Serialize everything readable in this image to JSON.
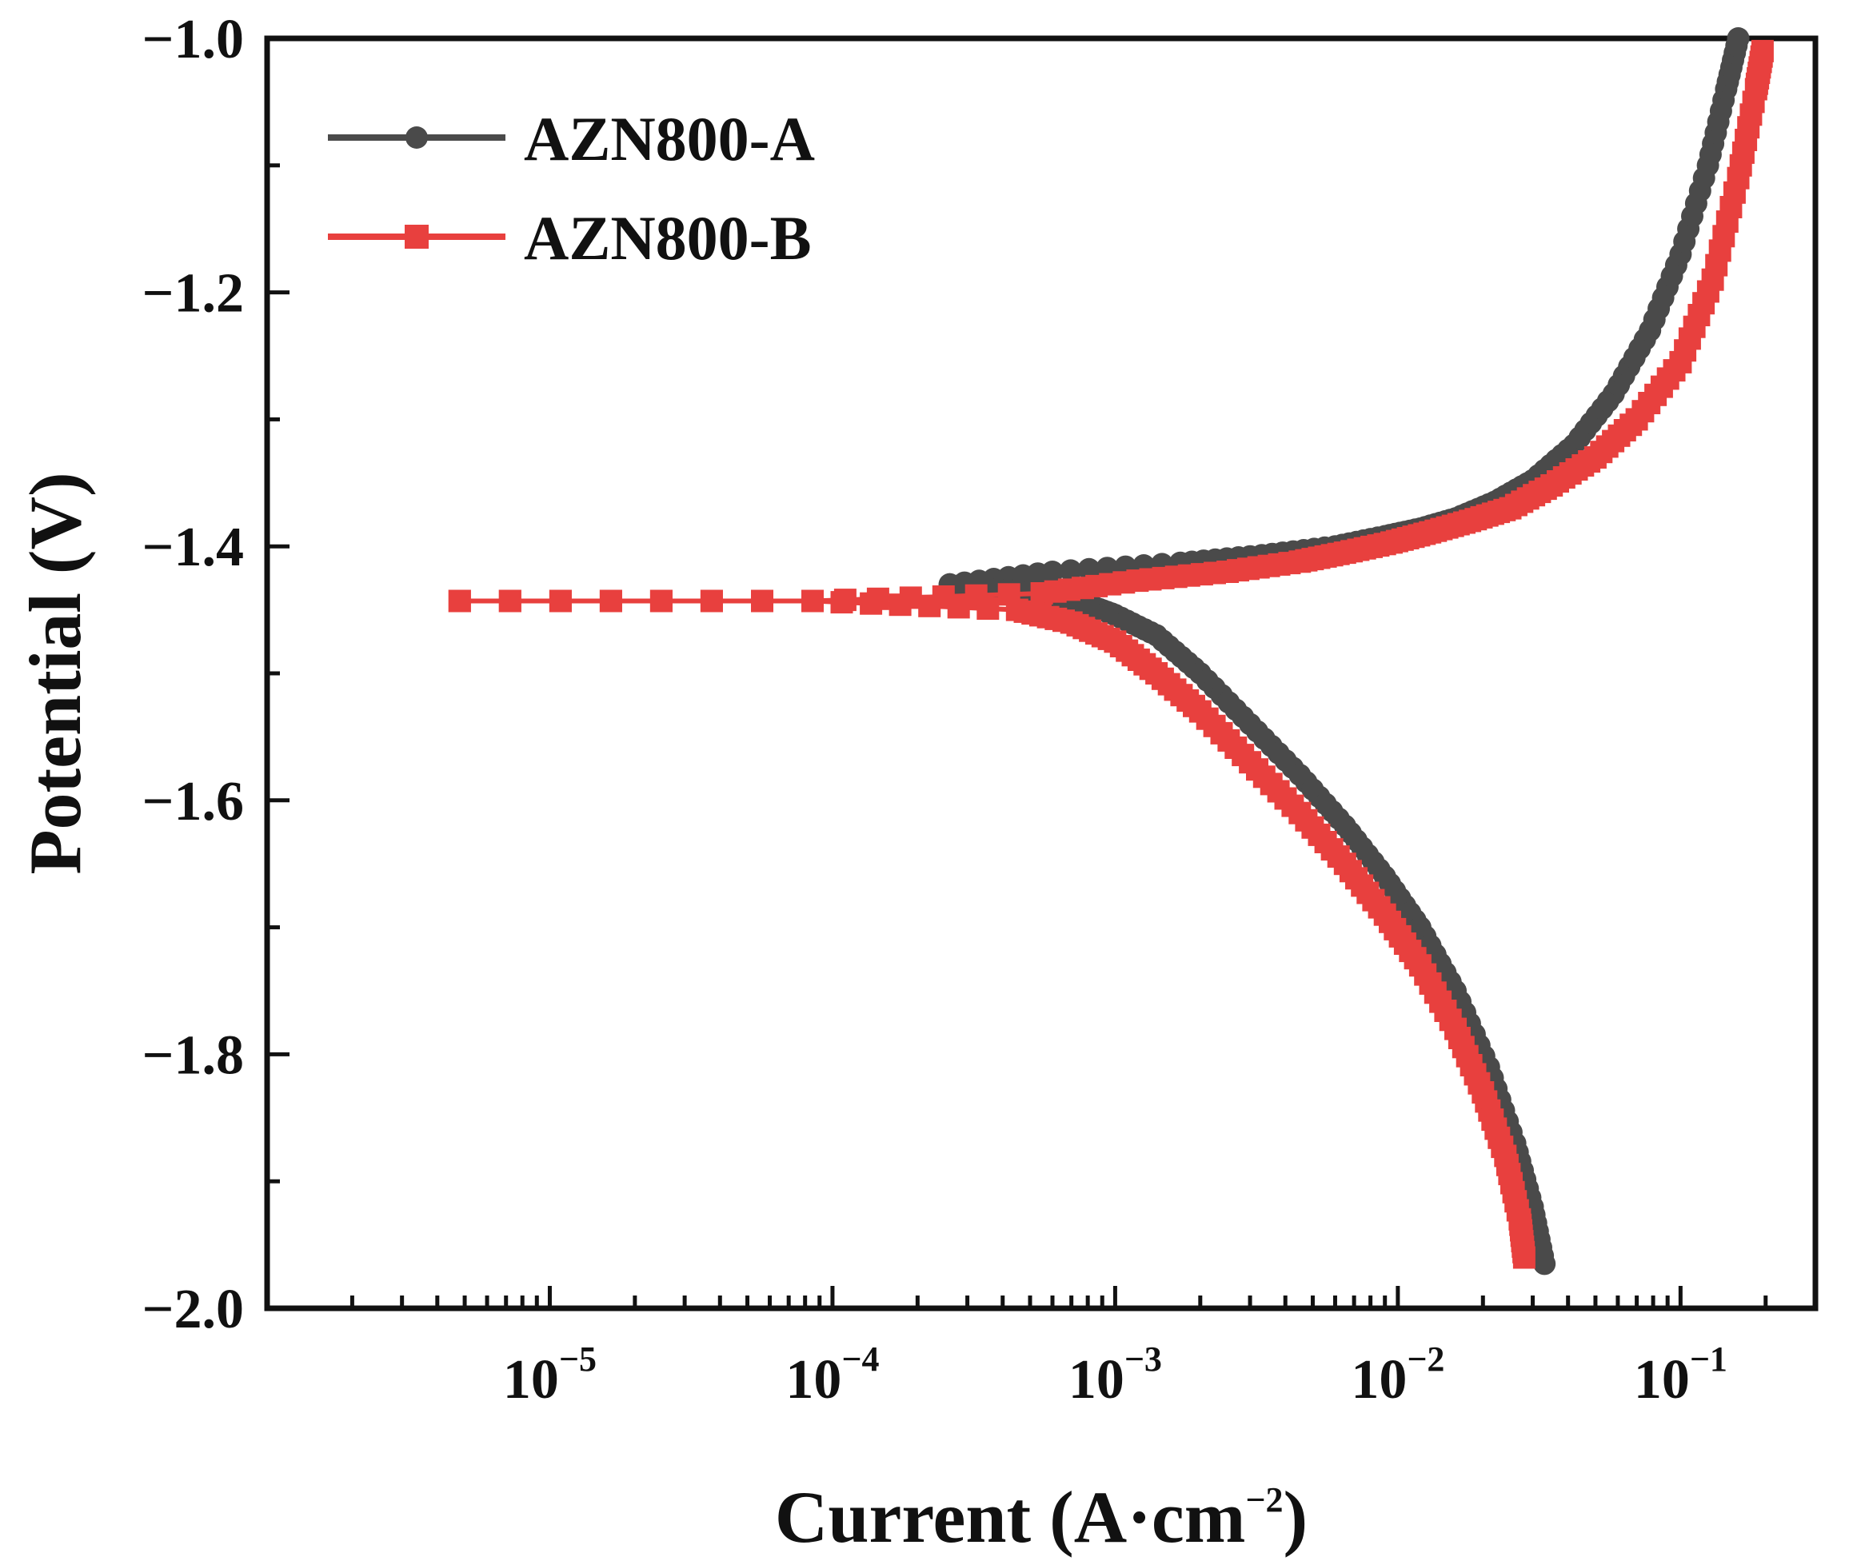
{
  "chart_data": {
    "type": "scatter",
    "title": "",
    "xlabel": "Current (A·cm⁻²)",
    "xlabel_base": "Current (A·cm",
    "xlabel_sup": "−2",
    "xlabel_end": ")",
    "ylabel": "Potential (V)",
    "xscale": "log",
    "xlim": [
      1e-06,
      0.3
    ],
    "ylim": [
      -2.0,
      -1.0
    ],
    "xticks": [
      {
        "base": "10",
        "exp": "−5"
      },
      {
        "base": "10",
        "exp": "−4"
      },
      {
        "base": "10",
        "exp": "−3"
      },
      {
        "base": "10",
        "exp": "−2"
      },
      {
        "base": "10",
        "exp": "−1"
      }
    ],
    "xtick_values": [
      1e-05,
      0.0001,
      0.001,
      0.01,
      0.1
    ],
    "yticks": [
      "−1.0",
      "−1.2",
      "−1.4",
      "−1.6",
      "−1.8",
      "−2.0"
    ],
    "ytick_values": [
      -1.0,
      -1.2,
      -1.4,
      -1.6,
      -1.8,
      -2.0
    ],
    "grid": false,
    "legend_position": "top-left",
    "series": [
      {
        "name": "AZN800-A",
        "color": "#4a4a4a",
        "marker": "circle",
        "anodic": [
          [
            0.00026,
            -1.43
          ],
          [
            0.0006,
            -1.42
          ],
          [
            0.0017,
            -1.413
          ],
          [
            0.0033,
            -1.407
          ],
          [
            0.006,
            -1.4
          ],
          [
            0.009,
            -1.392
          ],
          [
            0.012,
            -1.386
          ],
          [
            0.016,
            -1.378
          ],
          [
            0.022,
            -1.365
          ],
          [
            0.03,
            -1.348
          ],
          [
            0.042,
            -1.32
          ],
          [
            0.058,
            -1.28
          ],
          [
            0.078,
            -1.23
          ],
          [
            0.1,
            -1.17
          ],
          [
            0.125,
            -1.1
          ],
          [
            0.145,
            -1.04
          ],
          [
            0.16,
            -1.0
          ]
        ],
        "cathodic": [
          [
            0.00026,
            -1.43
          ],
          [
            0.00045,
            -1.435
          ],
          [
            0.0008,
            -1.446
          ],
          [
            0.001,
            -1.454
          ],
          [
            0.0014,
            -1.47
          ],
          [
            0.002,
            -1.5
          ],
          [
            0.003,
            -1.54
          ],
          [
            0.0045,
            -1.58
          ],
          [
            0.0065,
            -1.62
          ],
          [
            0.009,
            -1.66
          ],
          [
            0.012,
            -1.7
          ],
          [
            0.016,
            -1.75
          ],
          [
            0.021,
            -1.81
          ],
          [
            0.026,
            -1.87
          ],
          [
            0.03,
            -1.92
          ],
          [
            0.033,
            -1.965
          ]
        ]
      },
      {
        "name": "AZN800-B",
        "color": "#e8403e",
        "marker": "square",
        "anodic": [
          [
            4.8e-06,
            -1.443
          ],
          [
            8.5e-05,
            -1.443
          ],
          [
            0.00055,
            -1.437
          ],
          [
            0.0012,
            -1.427
          ],
          [
            0.0025,
            -1.42
          ],
          [
            0.0045,
            -1.412
          ],
          [
            0.0065,
            -1.405
          ],
          [
            0.0095,
            -1.397
          ],
          [
            0.013,
            -1.389
          ],
          [
            0.018,
            -1.38
          ],
          [
            0.025,
            -1.37
          ],
          [
            0.035,
            -1.352
          ],
          [
            0.05,
            -1.33
          ],
          [
            0.07,
            -1.3
          ],
          [
            0.1,
            -1.255
          ],
          [
            0.13,
            -1.19
          ],
          [
            0.16,
            -1.11
          ],
          [
            0.185,
            -1.04
          ],
          [
            0.195,
            -1.01
          ]
        ],
        "cathodic": [
          [
            4.8e-06,
            -1.443
          ],
          [
            8.5e-05,
            -1.443
          ],
          [
            0.00045,
            -1.45
          ],
          [
            0.0007,
            -1.46
          ],
          [
            0.001,
            -1.475
          ],
          [
            0.0014,
            -1.5
          ],
          [
            0.002,
            -1.53
          ],
          [
            0.003,
            -1.57
          ],
          [
            0.0045,
            -1.61
          ],
          [
            0.0065,
            -1.65
          ],
          [
            0.009,
            -1.69
          ],
          [
            0.012,
            -1.73
          ],
          [
            0.016,
            -1.78
          ],
          [
            0.02,
            -1.83
          ],
          [
            0.024,
            -1.88
          ],
          [
            0.027,
            -1.93
          ],
          [
            0.028,
            -1.96
          ]
        ]
      }
    ]
  }
}
